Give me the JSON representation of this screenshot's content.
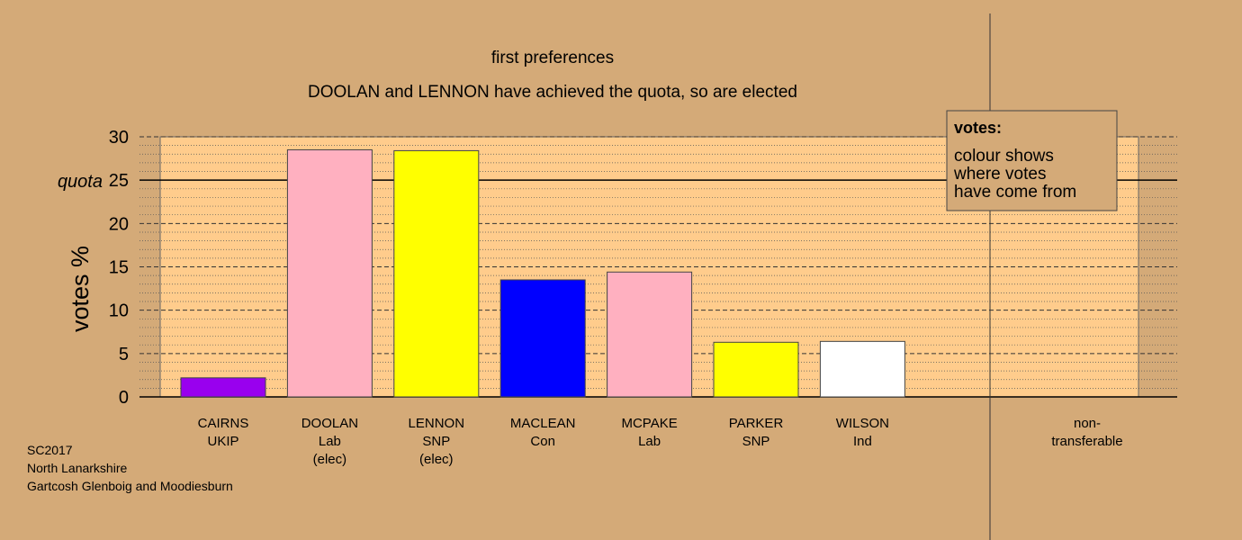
{
  "chart_data": {
    "type": "bar",
    "title": "first preferences",
    "subtitle": "DOOLAN and LENNON have achieved the quota, so are elected",
    "ylabel": "votes %",
    "quota_label": "quota",
    "quota_value": 25,
    "ylim": [
      0,
      30
    ],
    "yticks": [
      0,
      5,
      10,
      15,
      20,
      25,
      30
    ],
    "grid": true,
    "categories": [
      [
        "CAIRNS",
        "UKIP"
      ],
      [
        "DOOLAN",
        "Lab",
        "(elec)"
      ],
      [
        "LENNON",
        "SNP",
        "(elec)"
      ],
      [
        "MACLEAN",
        "Con"
      ],
      [
        "MCPAKE",
        "Lab"
      ],
      [
        "PARKER",
        "SNP"
      ],
      [
        "WILSON",
        "Ind"
      ]
    ],
    "values": [
      2.2,
      28.5,
      28.4,
      13.5,
      14.4,
      6.3,
      6.4
    ],
    "bar_colors": [
      "#9900ee",
      "#ffb0c0",
      "#ffff00",
      "#0000ff",
      "#ffb0c0",
      "#ffff00",
      "#ffffff"
    ],
    "extra_category": [
      "non-",
      "transferable"
    ],
    "extra_value": 0,
    "legend": {
      "title": "votes:",
      "lines": [
        "colour shows",
        "where votes",
        "have come from"
      ],
      "placement": "top-right"
    }
  },
  "footer": {
    "line1": "SC2017",
    "line2": "North Lanarkshire",
    "line3": "Gartcosh Glenboig and Moodiesburn"
  },
  "colors": {
    "background": "#d4aa78",
    "plot_area": "#ffcc8c"
  }
}
